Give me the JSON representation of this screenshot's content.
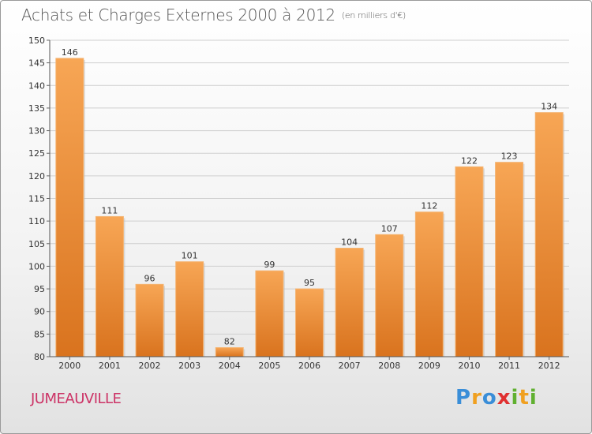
{
  "header": {
    "title": "Achats et Charges Externes 2000 à 2012",
    "subtitle": "(en milliers d'€)"
  },
  "footer": {
    "town": "JUMEAUVILLE",
    "logo_text": "Proxiti",
    "logo_letters": [
      {
        "ch": "P",
        "color": "#3a8ed8"
      },
      {
        "ch": "r",
        "color": "#f0a020"
      },
      {
        "ch": "o",
        "color": "#3a8ed8"
      },
      {
        "ch": "x",
        "color": "#e03030"
      },
      {
        "ch": "i",
        "color": "#60b030"
      },
      {
        "ch": "t",
        "color": "#f0a020"
      },
      {
        "ch": "i",
        "color": "#60b030"
      }
    ]
  },
  "chart_data": {
    "type": "bar",
    "categories": [
      "2000",
      "2001",
      "2002",
      "2003",
      "2004",
      "2005",
      "2006",
      "2007",
      "2008",
      "2009",
      "2010",
      "2011",
      "2012"
    ],
    "values": [
      146,
      111,
      96,
      101,
      82,
      99,
      95,
      104,
      107,
      112,
      122,
      123,
      134
    ],
    "data_labels": [
      "146",
      "111",
      "96",
      "101",
      "82",
      "99",
      "95",
      "104",
      "107",
      "112",
      "122",
      "123",
      "134"
    ],
    "title": "Achats et Charges Externes 2000 à 2012",
    "xlabel": "",
    "ylabel": "",
    "ylim": [
      80,
      150
    ],
    "yticks": [
      80,
      85,
      90,
      95,
      100,
      105,
      110,
      115,
      120,
      125,
      130,
      135,
      140,
      145,
      150
    ],
    "ytick_labels": [
      "80",
      "85",
      "90",
      "95",
      "100",
      "105",
      "110",
      "115",
      "120",
      "125",
      "130",
      "135",
      "140",
      "145",
      "150"
    ],
    "grid": true,
    "bar_color_light": "#f7a655",
    "bar_color_dark": "#d9731e"
  }
}
